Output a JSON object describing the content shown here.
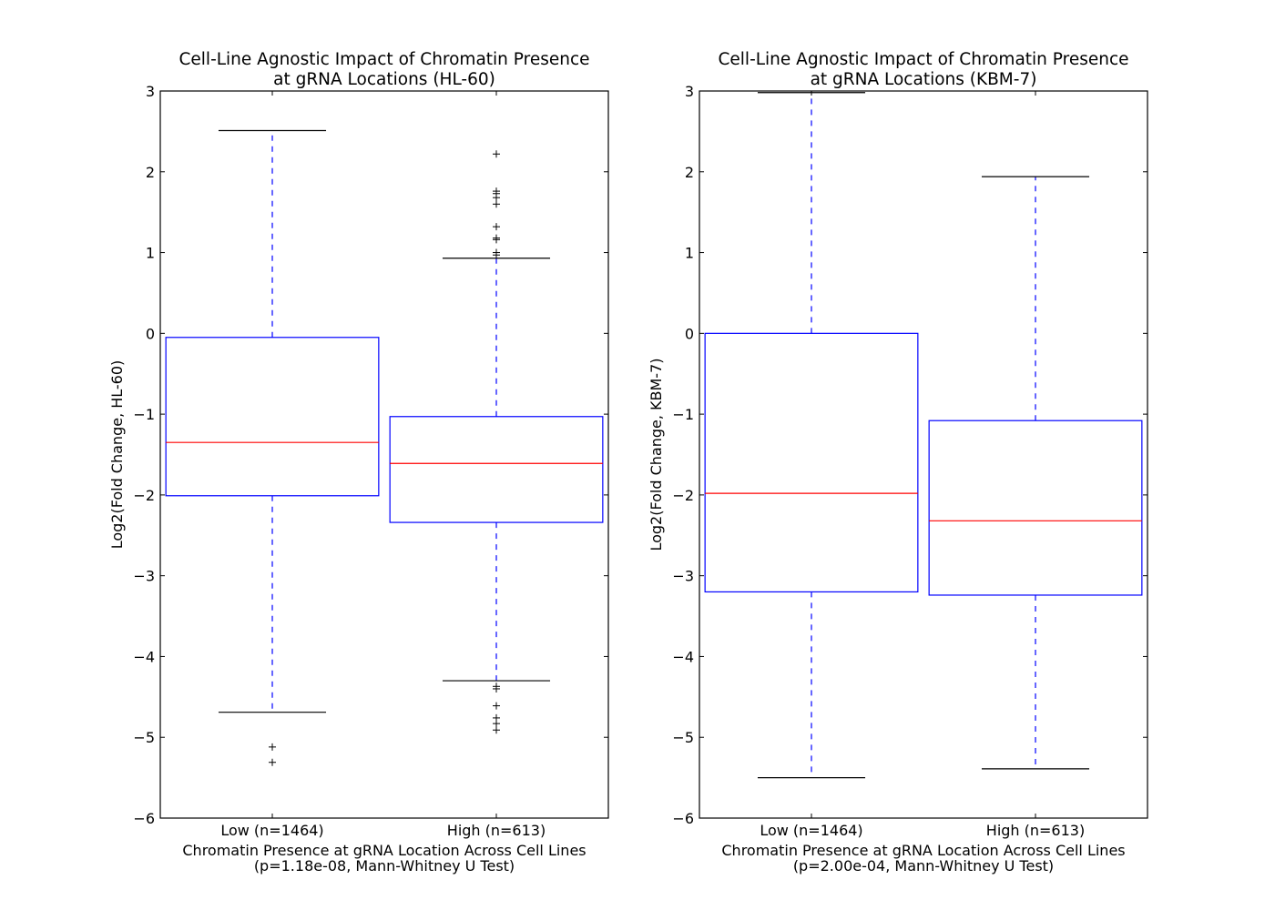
{
  "chart_data": [
    {
      "type": "box",
      "title": [
        "Cell-Line Agnostic Impact of Chromatin Presence",
        "at gRNA Locations (HL-60)"
      ],
      "ylabel": "Log2(Fold Change, HL-60)",
      "xlabel": [
        "Chromatin Presence at gRNA Location Across Cell Lines",
        "(p=1.18e-08, Mann-Whitney U Test)"
      ],
      "ylim": [
        -6,
        3
      ],
      "yticks": [
        3,
        2,
        1,
        0,
        -1,
        -2,
        -3,
        -4,
        -5,
        -6
      ],
      "ytick_labels": [
        "3",
        "2",
        "1",
        "0",
        "−1",
        "−2",
        "−3",
        "−4",
        "−5",
        "−6"
      ],
      "categories": [
        "Low (n=1464)",
        "High (n=613)"
      ],
      "boxes": [
        {
          "whisker_low": -4.69,
          "q1": -2.01,
          "median": -1.35,
          "q3": -0.05,
          "whisker_high": 2.51,
          "outliers": [
            -5.12,
            -5.31
          ]
        },
        {
          "whisker_low": -4.3,
          "q1": -2.34,
          "median": -1.61,
          "q3": -1.03,
          "whisker_high": 0.93,
          "outliers": [
            2.22,
            1.76,
            1.73,
            1.68,
            1.6,
            1.32,
            1.18,
            1.16,
            1.0,
            0.97,
            -4.37,
            -4.4,
            -4.61,
            -4.76,
            -4.83,
            -4.91
          ]
        }
      ],
      "colors": {
        "box": "#0000ff",
        "median": "#ff0000",
        "whisker": "#0000ff",
        "cap": "#000000",
        "outlier": "#000000"
      }
    },
    {
      "type": "box",
      "title": [
        "Cell-Line Agnostic Impact of Chromatin Presence",
        "at gRNA Locations (KBM-7)"
      ],
      "ylabel": "Log2(Fold Change, KBM-7)",
      "xlabel": [
        "Chromatin Presence at gRNA Location Across Cell Lines",
        "(p=2.00e-04, Mann-Whitney U Test)"
      ],
      "ylim": [
        -6,
        3
      ],
      "yticks": [
        3,
        2,
        1,
        0,
        -1,
        -2,
        -3,
        -4,
        -5,
        -6
      ],
      "ytick_labels": [
        "3",
        "2",
        "1",
        "0",
        "−1",
        "−2",
        "−3",
        "−4",
        "−5",
        "−6"
      ],
      "categories": [
        "Low (n=1464)",
        "High (n=613)"
      ],
      "boxes": [
        {
          "whisker_low": -5.5,
          "q1": -3.2,
          "median": -1.98,
          "q3": 0.0,
          "whisker_high": 2.98,
          "outliers": []
        },
        {
          "whisker_low": -5.39,
          "q1": -3.24,
          "median": -2.32,
          "q3": -1.08,
          "whisker_high": 1.94,
          "outliers": []
        }
      ],
      "colors": {
        "box": "#0000ff",
        "median": "#ff0000",
        "whisker": "#0000ff",
        "cap": "#000000",
        "outlier": "#000000"
      }
    }
  ]
}
